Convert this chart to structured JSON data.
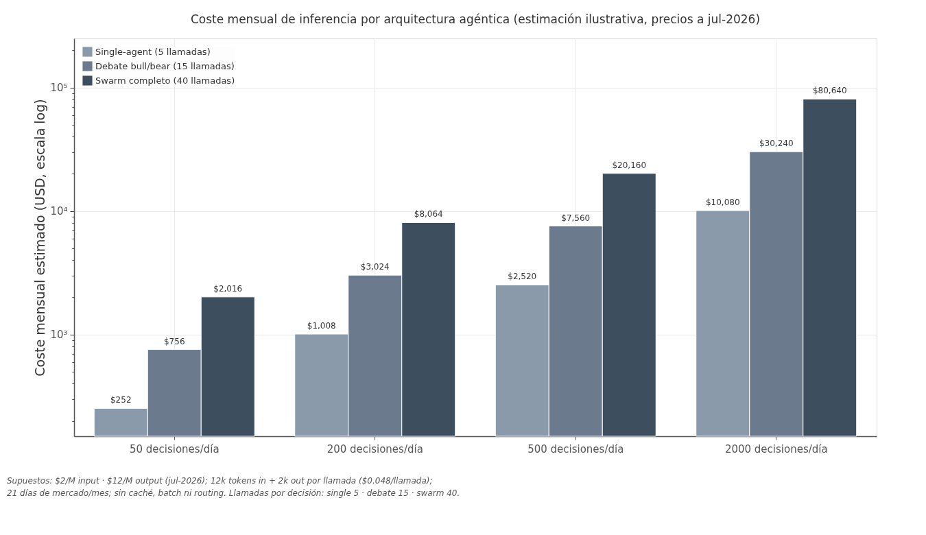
{
  "chart_data": {
    "type": "bar",
    "title": "Coste mensual de inferencia por arquitectura agéntica (estimación ilustrativa, precios a jul-2026)",
    "ylabel": "Coste mensual estimado (USD, escala log)",
    "categories": [
      "50 decisiones/día",
      "200 decisiones/día",
      "500 decisiones/día",
      "2000 decisiones/día"
    ],
    "series": [
      {
        "name": "Single-agent (5 llamadas)",
        "color": "#8a9aaa",
        "values": [
          252,
          1008,
          2520,
          10080
        ],
        "value_labels": [
          "$252",
          "$1,008",
          "$2,520",
          "$10,080"
        ]
      },
      {
        "name": "Debate bull/bear (15 llamadas)",
        "color": "#6b7a8c",
        "values": [
          756,
          3024,
          7560,
          30240
        ],
        "value_labels": [
          "$756",
          "$3,024",
          "$7,560",
          "$30,240"
        ]
      },
      {
        "name": "Swarm completo (40 llamadas)",
        "color": "#3d4f5f",
        "values": [
          2016,
          8064,
          20160,
          80640
        ],
        "value_labels": [
          "$2,016",
          "$8,064",
          "$20,160",
          "$80,640"
        ]
      }
    ],
    "log": "y",
    "ylim": [
      150,
      250000
    ],
    "yticks": [
      {
        "value": 200,
        "label": null
      },
      {
        "value": 300,
        "label": null
      },
      {
        "value": 400,
        "label": null
      },
      {
        "value": 500,
        "label": null
      },
      {
        "value": 600,
        "label": null
      },
      {
        "value": 700,
        "label": null
      },
      {
        "value": 800,
        "label": null
      },
      {
        "value": 900,
        "label": null
      },
      {
        "value": 1000,
        "label": "10³"
      },
      {
        "value": 2000,
        "label": null
      },
      {
        "value": 3000,
        "label": null
      },
      {
        "value": 4000,
        "label": null
      },
      {
        "value": 5000,
        "label": null
      },
      {
        "value": 6000,
        "label": null
      },
      {
        "value": 7000,
        "label": null
      },
      {
        "value": 8000,
        "label": null
      },
      {
        "value": 9000,
        "label": null
      },
      {
        "value": 10000,
        "label": "10⁴"
      },
      {
        "value": 20000,
        "label": null
      },
      {
        "value": 30000,
        "label": null
      },
      {
        "value": 40000,
        "label": null
      },
      {
        "value": 50000,
        "label": null
      },
      {
        "value": 60000,
        "label": null
      },
      {
        "value": 70000,
        "label": null
      },
      {
        "value": 80000,
        "label": null
      },
      {
        "value": 90000,
        "label": null
      },
      {
        "value": 100000,
        "label": "10⁵"
      },
      {
        "value": 200000,
        "label": null
      }
    ],
    "grid": true,
    "legend": "top left",
    "annotations": [
      "Supuestos: $2/M input · $12/M output (jul-2026); 12k tokens in + 2k out por llamada ($0.048/llamada);",
      "21 días de mercado/mes; sin caché, batch ni routing. Llamadas por decisión: single 5 · debate 15 · swarm 40."
    ]
  }
}
